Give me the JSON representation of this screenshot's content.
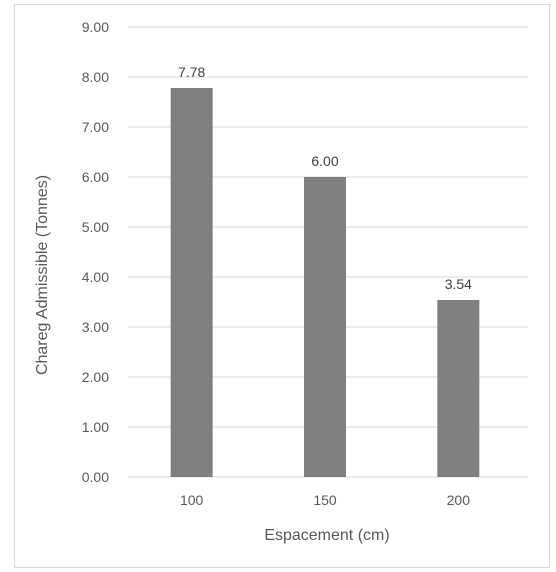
{
  "chart_data": {
    "type": "bar",
    "categories": [
      "100",
      "150",
      "200"
    ],
    "values": [
      7.78,
      6.0,
      3.54
    ],
    "data_labels": [
      "7.78",
      "6.00",
      "3.54"
    ],
    "title": "",
    "xlabel": "Espacement (cm)",
    "ylabel": "Chareg Admissible (Tonnes)",
    "ylim": [
      0,
      9
    ],
    "yticks": [
      "0.00",
      "1.00",
      "2.00",
      "3.00",
      "4.00",
      "5.00",
      "6.00",
      "7.00",
      "8.00",
      "9.00"
    ],
    "grid": true,
    "legend": "none",
    "bar_color": "#808080",
    "grid_color": "#d9d9d9"
  }
}
